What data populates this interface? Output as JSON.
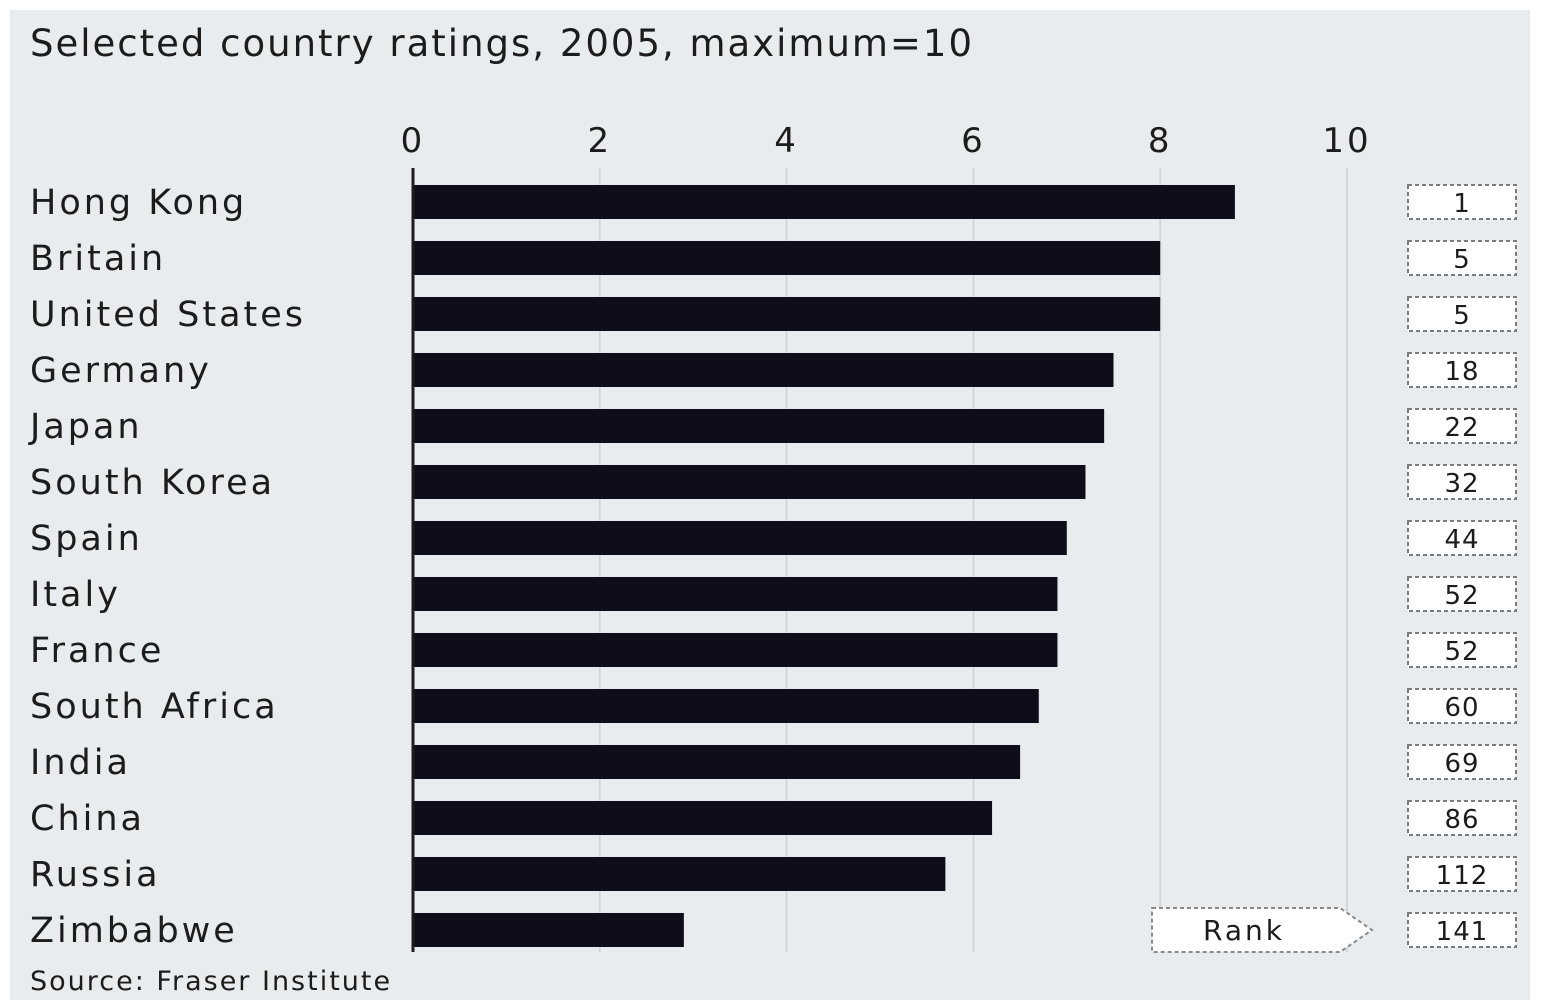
{
  "chart_data": {
    "type": "bar",
    "orientation": "horizontal",
    "title": "Selected country ratings, 2005, maximum=10",
    "source": "Source: Fraser Institute",
    "xlim": [
      0,
      10
    ],
    "ticks": [
      0,
      2,
      4,
      6,
      8,
      10
    ],
    "grid": true,
    "categories": [
      "Hong Kong",
      "Britain",
      "United States",
      "Germany",
      "Japan",
      "South Korea",
      "Spain",
      "Italy",
      "France",
      "South Africa",
      "India",
      "China",
      "Russia",
      "Zimbabwe"
    ],
    "values": [
      8.8,
      8.0,
      8.0,
      7.5,
      7.4,
      7.2,
      7.0,
      6.9,
      6.9,
      6.7,
      6.5,
      6.2,
      5.7,
      2.9
    ],
    "ranks": [
      "1",
      "5",
      "5",
      "18",
      "22",
      "32",
      "44",
      "52",
      "52",
      "60",
      "69",
      "86",
      "112",
      "141"
    ],
    "rank_label": "Rank",
    "bar_color": "#0d0e1a"
  }
}
